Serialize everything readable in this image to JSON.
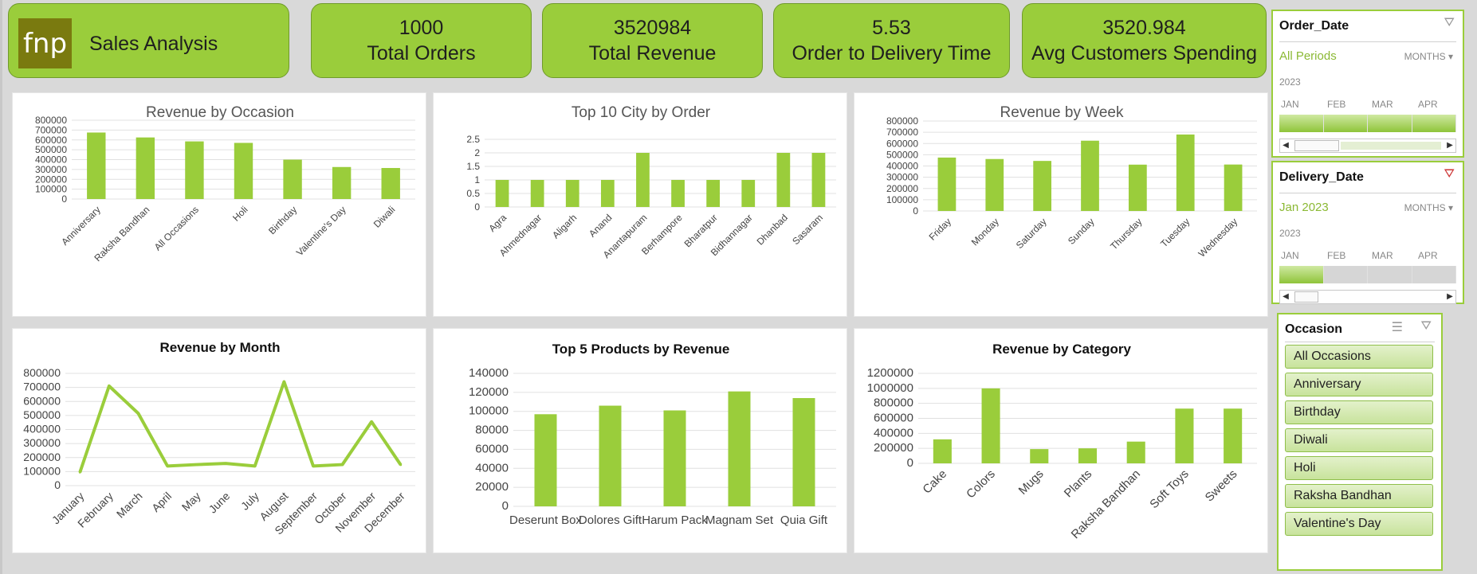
{
  "header": {
    "brand_logo_text": "fnp",
    "brand_title": "Sales Analysis",
    "kpis": [
      {
        "value": "1000",
        "label": "Total Orders"
      },
      {
        "value": "3520984",
        "label": "Total Revenue"
      },
      {
        "value": "5.53",
        "label": "Order to Delivery Time"
      },
      {
        "value": "3520.984",
        "label": "Avg Customers Spending"
      }
    ]
  },
  "colors": {
    "accent": "#9ACD3B",
    "bar": "#9ACD3B",
    "border": "#6f9a2a",
    "background": "#d9d9d9"
  },
  "order_slicer": {
    "title": "Order_Date",
    "period": "All Periods",
    "granularity": "MONTHS",
    "year": "2023",
    "months": [
      "JAN",
      "FEB",
      "MAR",
      "APR"
    ],
    "selected_months": 4
  },
  "delivery_slicer": {
    "title": "Delivery_Date",
    "period": "Jan 2023",
    "granularity": "MONTHS",
    "year": "2023",
    "months": [
      "JAN",
      "FEB",
      "MAR",
      "APR"
    ],
    "selected_months": 1
  },
  "occasion_slicer": {
    "title": "Occasion",
    "items": [
      "All Occasions",
      "Anniversary",
      "Birthday",
      "Diwali",
      "Holi",
      "Raksha Bandhan",
      "Valentine's Day"
    ]
  },
  "chart_data": [
    {
      "id": "occasion",
      "type": "bar",
      "title": "Revenue  by Occasion",
      "categories": [
        "Anniversary",
        "Raksha Bandhan",
        "All Occasions",
        "Holi",
        "Birthday",
        "Valentine's Day",
        "Diwali"
      ],
      "values": [
        675000,
        625000,
        585000,
        570000,
        400000,
        325000,
        315000
      ],
      "ylim": [
        0,
        800000
      ],
      "yticks": [
        0,
        100000,
        200000,
        300000,
        400000,
        500000,
        600000,
        700000,
        800000
      ],
      "rotate_labels": true,
      "xlabel": "",
      "ylabel": ""
    },
    {
      "id": "city",
      "type": "bar",
      "title": "Top 10 City by Order",
      "categories": [
        "Agra",
        "Ahmednagar",
        "Aligarh",
        "Anand",
        "Anantapuram",
        "Berhampore",
        "Bharatpur",
        "Bidhannagar",
        "Dhanbad",
        "Sasaram"
      ],
      "values": [
        1,
        1,
        1,
        1,
        2,
        1,
        1,
        1,
        2,
        2
      ],
      "ylim": [
        0,
        2.5
      ],
      "yticks": [
        0,
        0.5,
        1,
        1.5,
        2,
        2.5
      ],
      "rotate_labels": true,
      "xlabel": "",
      "ylabel": ""
    },
    {
      "id": "week",
      "type": "bar",
      "title": "Revenue  by Week",
      "categories": [
        "Friday",
        "Monday",
        "Saturday",
        "Sunday",
        "Thursday",
        "Tuesday",
        "Wednesday"
      ],
      "values": [
        475000,
        462000,
        445000,
        625000,
        412000,
        680000,
        413000
      ],
      "ylim": [
        0,
        800000
      ],
      "yticks": [
        0,
        100000,
        200000,
        300000,
        400000,
        500000,
        600000,
        700000,
        800000
      ],
      "rotate_labels": true,
      "xlabel": "",
      "ylabel": ""
    },
    {
      "id": "month",
      "type": "line",
      "title": "Revenue by Month",
      "categories": [
        "January",
        "February",
        "March",
        "April",
        "May",
        "June",
        "July",
        "August",
        "September",
        "October",
        "November",
        "December"
      ],
      "values": [
        95000,
        710000,
        515000,
        140000,
        150000,
        158000,
        140000,
        740000,
        140000,
        150000,
        455000,
        148000
      ],
      "ylim": [
        0,
        800000
      ],
      "yticks": [
        0,
        100000,
        200000,
        300000,
        400000,
        500000,
        600000,
        700000,
        800000
      ],
      "rotate_labels": true,
      "xlabel": "",
      "ylabel": ""
    },
    {
      "id": "products",
      "type": "bar",
      "title": "Top 5 Products by Revenue",
      "categories": [
        "Deserunt Box",
        "Dolores Gift",
        "Harum Pack",
        "Magnam Set",
        "Quia Gift"
      ],
      "values": [
        97000,
        106000,
        101000,
        121000,
        114000
      ],
      "ylim": [
        0,
        140000
      ],
      "yticks": [
        0,
        20000,
        40000,
        60000,
        80000,
        100000,
        120000,
        140000
      ],
      "rotate_labels": false,
      "xlabel": "",
      "ylabel": ""
    },
    {
      "id": "category",
      "type": "bar",
      "title": "Revenue by Category",
      "categories": [
        "Cake",
        "Colors",
        "Mugs",
        "Plants",
        "Raksha Bandhan",
        "Soft Toys",
        "Sweets"
      ],
      "values": [
        320000,
        1000000,
        190000,
        200000,
        290000,
        730000,
        730000
      ],
      "ylim": [
        0,
        1200000
      ],
      "yticks": [
        0,
        200000,
        400000,
        600000,
        800000,
        1000000,
        1200000
      ],
      "rotate_labels": true,
      "xlabel": "",
      "ylabel": ""
    }
  ]
}
